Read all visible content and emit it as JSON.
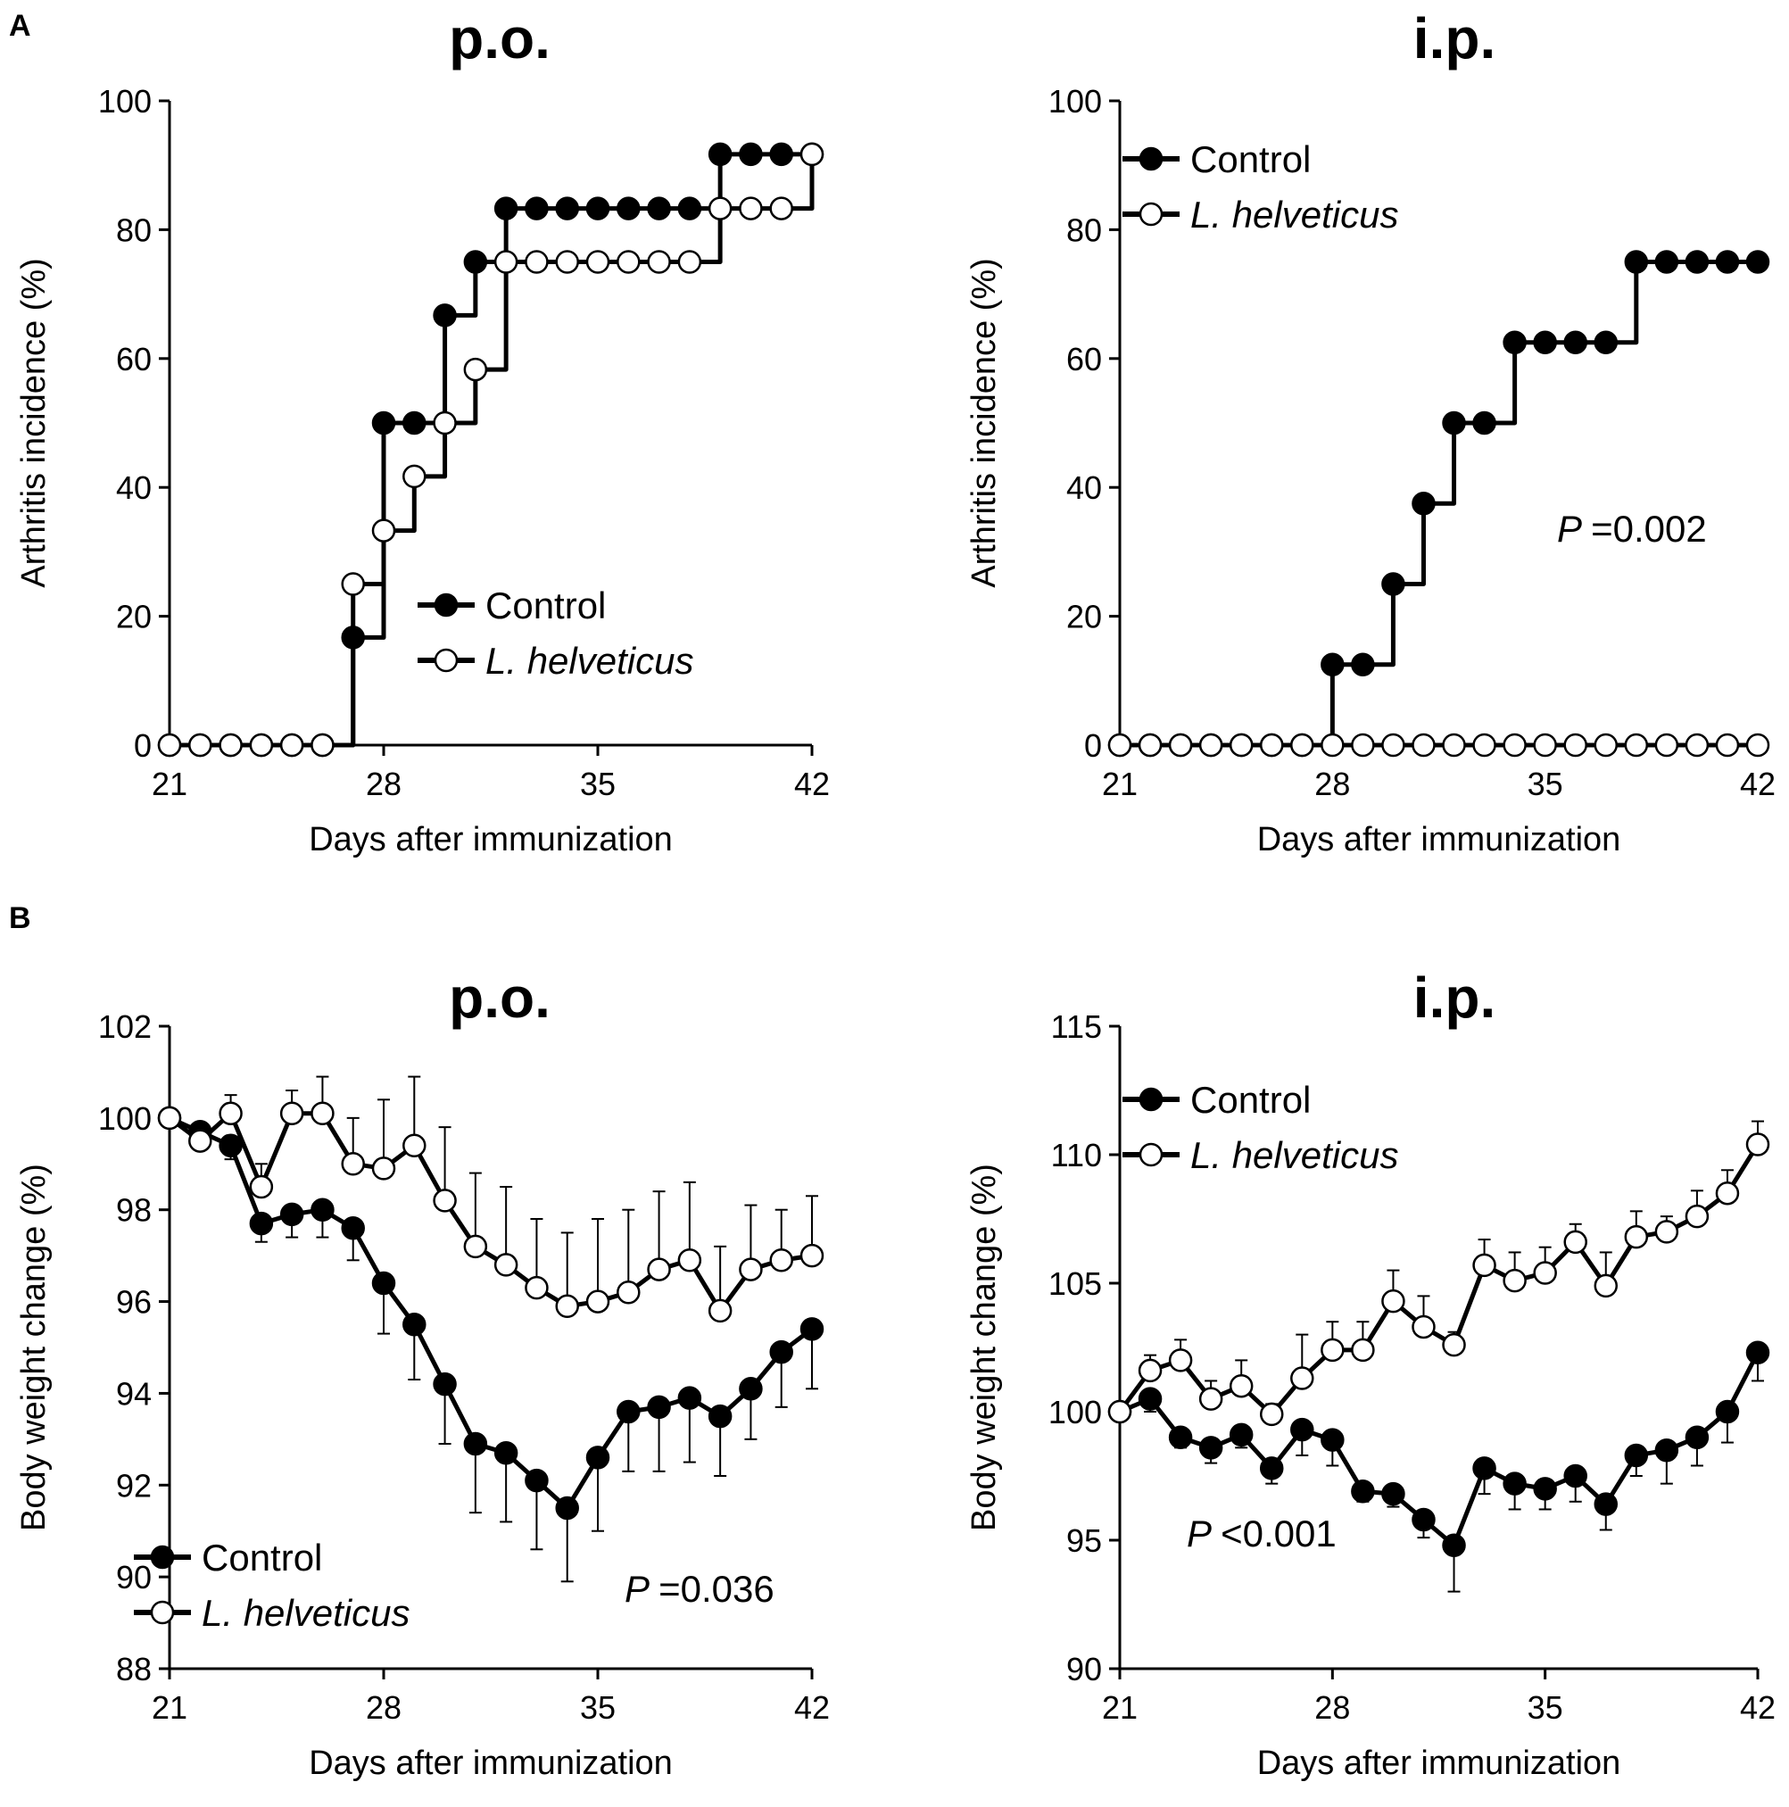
{
  "panel_labels": [
    "A",
    "B"
  ],
  "colors": {
    "control": "#000000",
    "helveticus_fill": "#ffffff",
    "line": "#000000"
  },
  "chart_data": [
    {
      "id": "a-po",
      "type": "line",
      "panel": "A",
      "title": "p.o.",
      "xlabel": "Days after immunization",
      "ylabel": "Arthritis incidence (%)",
      "xlim": [
        21,
        42
      ],
      "ylim": [
        0,
        100
      ],
      "xticks": [
        21,
        28,
        35,
        42
      ],
      "yticks": [
        0,
        20,
        40,
        60,
        80,
        100
      ],
      "step": true,
      "legend": {
        "position": "lower-right",
        "entries": [
          "Control",
          "L. helveticus"
        ]
      },
      "pvalue": "",
      "x": [
        21,
        22,
        23,
        24,
        25,
        26,
        27,
        28,
        29,
        30,
        31,
        32,
        33,
        34,
        35,
        36,
        37,
        38,
        39,
        40,
        41,
        42
      ],
      "series": [
        {
          "name": "Control",
          "marker": "filled",
          "values": [
            0,
            0,
            0,
            0,
            0,
            0,
            16.7,
            50,
            50,
            66.7,
            75,
            83.3,
            83.3,
            83.3,
            83.3,
            83.3,
            83.3,
            83.3,
            91.7,
            91.7,
            91.7,
            91.7
          ]
        },
        {
          "name": "L. helveticus",
          "marker": "open",
          "values": [
            0,
            0,
            0,
            0,
            0,
            0,
            25,
            33.3,
            41.7,
            50,
            58.3,
            75,
            75,
            75,
            75,
            75,
            75,
            75,
            83.3,
            83.3,
            83.3,
            91.7
          ]
        }
      ]
    },
    {
      "id": "a-ip",
      "type": "line",
      "panel": "A",
      "title": "i.p.",
      "xlabel": "Days after immunization",
      "ylabel": "Arthritis incidence (%)",
      "xlim": [
        21,
        42
      ],
      "ylim": [
        0,
        100
      ],
      "xticks": [
        21,
        28,
        35,
        42
      ],
      "yticks": [
        0,
        20,
        40,
        60,
        80,
        100
      ],
      "step": true,
      "legend": {
        "position": "top-left",
        "entries": [
          "Control",
          "L. helveticus"
        ]
      },
      "pvalue": "=0.002",
      "x": [
        21,
        22,
        23,
        24,
        25,
        26,
        27,
        28,
        29,
        30,
        31,
        32,
        33,
        34,
        35,
        36,
        37,
        38,
        39,
        40,
        41,
        42
      ],
      "series": [
        {
          "name": "Control",
          "marker": "filled",
          "values": [
            0,
            0,
            0,
            0,
            0,
            0,
            0,
            12.5,
            12.5,
            25,
            37.5,
            50,
            50,
            62.5,
            62.5,
            62.5,
            62.5,
            75,
            75,
            75,
            75,
            75
          ]
        },
        {
          "name": "L. helveticus",
          "marker": "open",
          "values": [
            0,
            0,
            0,
            0,
            0,
            0,
            0,
            0,
            0,
            0,
            0,
            0,
            0,
            0,
            0,
            0,
            0,
            0,
            0,
            0,
            0,
            0
          ]
        }
      ]
    },
    {
      "id": "b-po",
      "type": "line",
      "panel": "B",
      "title": "p.o.",
      "xlabel": "Days after immunization",
      "ylabel": "Body weight change (%)",
      "xlim": [
        21,
        42
      ],
      "ylim": [
        88,
        102
      ],
      "xticks": [
        21,
        28,
        35,
        42
      ],
      "yticks": [
        88,
        90,
        92,
        94,
        96,
        98,
        100,
        102
      ],
      "step": false,
      "legend": {
        "position": "bottom-left",
        "entries": [
          "Control",
          "L. helveticus"
        ]
      },
      "pvalue": "=0.036",
      "x": [
        21,
        22,
        23,
        24,
        25,
        26,
        27,
        28,
        29,
        30,
        31,
        32,
        33,
        34,
        35,
        36,
        37,
        38,
        39,
        40,
        41,
        42
      ],
      "series": [
        {
          "name": "Control",
          "marker": "filled",
          "error_dir": "down",
          "values": [
            100,
            99.7,
            99.4,
            97.7,
            97.9,
            98.0,
            97.6,
            96.4,
            95.5,
            94.2,
            92.9,
            92.7,
            92.1,
            91.5,
            92.6,
            93.6,
            93.7,
            93.9,
            93.5,
            94.1,
            94.9,
            95.4
          ],
          "errors": [
            0,
            0.2,
            0.3,
            0.4,
            0.5,
            0.6,
            0.7,
            1.1,
            1.2,
            1.3,
            1.5,
            1.5,
            1.5,
            1.6,
            1.6,
            1.3,
            1.4,
            1.4,
            1.3,
            1.1,
            1.2,
            1.3
          ]
        },
        {
          "name": "L. helveticus",
          "marker": "open",
          "error_dir": "up",
          "values": [
            100,
            99.5,
            100.1,
            98.5,
            100.1,
            100.1,
            99.0,
            98.9,
            99.4,
            98.2,
            97.2,
            96.8,
            96.3,
            95.9,
            96.0,
            96.2,
            96.7,
            96.9,
            95.8,
            96.7,
            96.9,
            97.0
          ],
          "errors": [
            0,
            0.3,
            0.4,
            0.5,
            0.5,
            0.8,
            1.0,
            1.5,
            1.5,
            1.6,
            1.6,
            1.7,
            1.5,
            1.6,
            1.8,
            1.8,
            1.7,
            1.7,
            1.4,
            1.4,
            1.1,
            1.3
          ]
        }
      ]
    },
    {
      "id": "b-ip",
      "type": "line",
      "panel": "B",
      "title": "i.p.",
      "xlabel": "Days after immunization",
      "ylabel": "Body weight change (%)",
      "xlim": [
        21,
        42
      ],
      "ylim": [
        90,
        115
      ],
      "xticks": [
        21,
        28,
        35,
        42
      ],
      "yticks": [
        90,
        95,
        100,
        105,
        110,
        115
      ],
      "step": false,
      "legend": {
        "position": "top-left",
        "entries": [
          "Control",
          "L. helveticus"
        ]
      },
      "pvalue": "<0.001",
      "x": [
        21,
        22,
        23,
        24,
        25,
        26,
        27,
        28,
        29,
        30,
        31,
        32,
        33,
        34,
        35,
        36,
        37,
        38,
        39,
        40,
        41,
        42
      ],
      "series": [
        {
          "name": "Control",
          "marker": "filled",
          "error_dir": "down",
          "values": [
            100,
            100.5,
            99.0,
            98.6,
            99.1,
            97.8,
            99.3,
            98.9,
            96.9,
            96.8,
            95.8,
            94.8,
            97.8,
            97.2,
            97.0,
            97.5,
            96.4,
            98.3,
            98.5,
            99.0,
            100,
            102.3
          ],
          "errors": [
            0,
            0.5,
            0.4,
            0.6,
            0.5,
            0.6,
            1.0,
            1.0,
            0.4,
            0.5,
            0.7,
            1.8,
            1.0,
            1.0,
            0.8,
            1.0,
            1.0,
            0.8,
            1.3,
            1.1,
            1.2,
            1.1
          ]
        },
        {
          "name": "L. helveticus",
          "marker": "open",
          "error_dir": "up",
          "values": [
            100,
            101.6,
            102.0,
            100.5,
            101.0,
            99.9,
            101.3,
            102.4,
            102.4,
            104.3,
            103.3,
            102.6,
            105.7,
            105.1,
            105.4,
            106.6,
            104.9,
            106.8,
            107.0,
            107.6,
            108.5,
            110.4
          ],
          "errors": [
            0,
            0.6,
            0.8,
            0.7,
            1.0,
            0.4,
            1.7,
            1.1,
            1.1,
            1.2,
            1.2,
            0.5,
            1.0,
            1.1,
            1.0,
            0.7,
            1.3,
            1.0,
            0.6,
            1.0,
            0.9,
            0.9
          ]
        }
      ]
    }
  ]
}
